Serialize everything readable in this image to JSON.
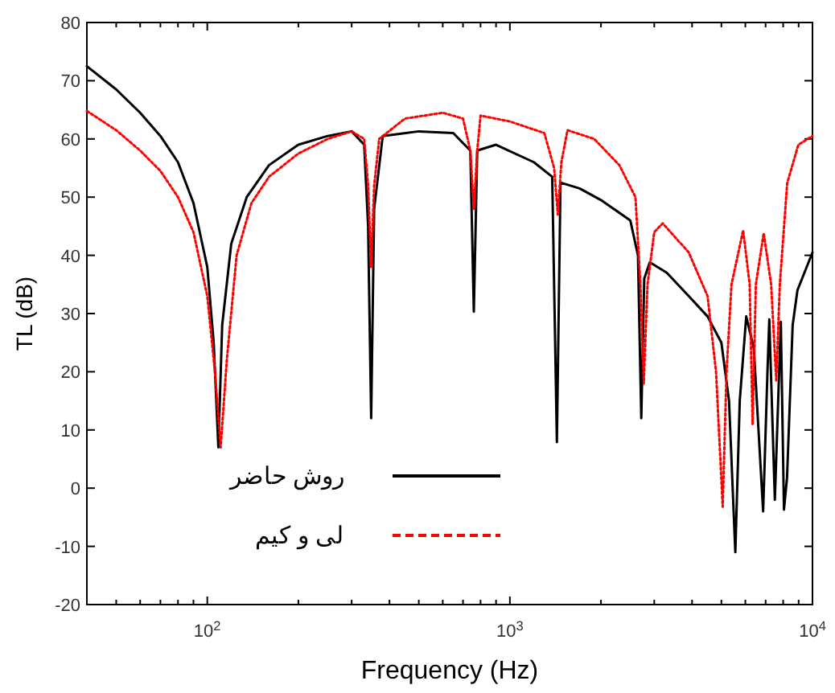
{
  "chart_data": {
    "type": "line",
    "xlabel": "Frequency (Hz)",
    "ylabel": "TL (dB)",
    "log": "x",
    "legend": "bottom left",
    "xlim": [
      40,
      10000
    ],
    "ylim": [
      -20,
      80
    ],
    "xticks": [
      {
        "value": 50,
        "label": null
      },
      {
        "value": 60,
        "label": null
      },
      {
        "value": 70,
        "label": null
      },
      {
        "value": 80,
        "label": null
      },
      {
        "value": 90,
        "label": null
      },
      {
        "value": 100,
        "label": "10$^{2}$"
      },
      {
        "value": 200,
        "label": null
      },
      {
        "value": 300,
        "label": null
      },
      {
        "value": 400,
        "label": null
      },
      {
        "value": 500,
        "label": null
      },
      {
        "value": 600,
        "label": null
      },
      {
        "value": 700,
        "label": null
      },
      {
        "value": 800,
        "label": null
      },
      {
        "value": 900,
        "label": null
      },
      {
        "value": 1000,
        "label": "10$^{3}$"
      },
      {
        "value": 2000,
        "label": null
      },
      {
        "value": 3000,
        "label": null
      },
      {
        "value": 4000,
        "label": null
      },
      {
        "value": 5000,
        "label": null
      },
      {
        "value": 6000,
        "label": null
      },
      {
        "value": 7000,
        "label": null
      },
      {
        "value": 8000,
        "label": null
      },
      {
        "value": 9000,
        "label": null
      },
      {
        "value": 10000,
        "label": "10$^{4}$"
      }
    ],
    "yticks": [
      -20,
      -10,
      0,
      10,
      20,
      30,
      40,
      50,
      60,
      70,
      80
    ],
    "series": [
      {
        "name": "روش حاضر",
        "color": "#000000",
        "line_style": "solid",
        "x": [
          40,
          50,
          60,
          70,
          80,
          90,
          100,
          105,
          108.8,
          112,
          120,
          135,
          160,
          200,
          250,
          300,
          330,
          340,
          348,
          356,
          380,
          500,
          650,
          740,
          760,
          780,
          900,
          1200,
          1380,
          1430,
          1470,
          1700,
          2000,
          2500,
          2650,
          2718,
          2780,
          2900,
          3300,
          3900,
          4500,
          5000,
          5300,
          5560,
          5750,
          6040,
          6400,
          6870,
          7100,
          7200,
          7510,
          7860,
          8050,
          8240,
          8600,
          8920,
          10000
        ],
        "values": [
          72.5,
          68.5,
          64.5,
          60.5,
          56,
          49,
          38,
          25,
          7,
          28,
          42,
          50,
          55.5,
          59,
          60.5,
          61.3,
          59,
          45,
          12,
          48,
          60.5,
          61.3,
          61,
          58,
          30.3,
          58,
          59,
          56,
          53.5,
          7.9,
          52.5,
          51.5,
          49.5,
          46,
          40,
          12,
          36,
          38.8,
          37,
          33,
          29.5,
          25,
          15,
          -11,
          15,
          29.5,
          24,
          -4,
          20,
          29,
          -2,
          28.6,
          -3.7,
          1.8,
          28,
          34,
          40.5
        ]
      },
      {
        "name": "لی و کیم",
        "color": "#ff0000",
        "line_style": "dotted",
        "x": [
          40,
          50,
          60,
          70,
          80,
          90,
          100,
          106,
          110.7,
          116,
          125,
          140,
          160,
          200,
          250,
          300,
          330,
          340,
          348,
          356,
          370,
          450,
          600,
          700,
          740,
          760,
          780,
          800,
          1000,
          1300,
          1400,
          1440,
          1480,
          1550,
          1900,
          2300,
          2600,
          2700,
          2770,
          2850,
          3000,
          3200,
          3900,
          4500,
          4800,
          5050,
          5200,
          5400,
          5900,
          6200,
          6340,
          6500,
          6900,
          7300,
          7590,
          7800,
          8250,
          8980,
          10000
        ],
        "values": [
          64.8,
          61.5,
          58,
          54.5,
          50,
          44,
          33,
          20,
          7,
          22,
          40,
          49,
          53.5,
          57.5,
          60,
          61.3,
          60,
          52,
          38,
          52,
          60,
          63.5,
          64.5,
          63.5,
          58,
          48,
          58,
          64,
          63,
          61,
          55,
          47,
          56,
          61.5,
          60,
          55.5,
          50,
          35,
          18,
          35,
          44,
          45.5,
          40.5,
          33,
          20,
          -3.2,
          20,
          35,
          44.3,
          35,
          11,
          35,
          43.8,
          35,
          18.5,
          35,
          52.4,
          59,
          60.5
        ]
      }
    ]
  }
}
